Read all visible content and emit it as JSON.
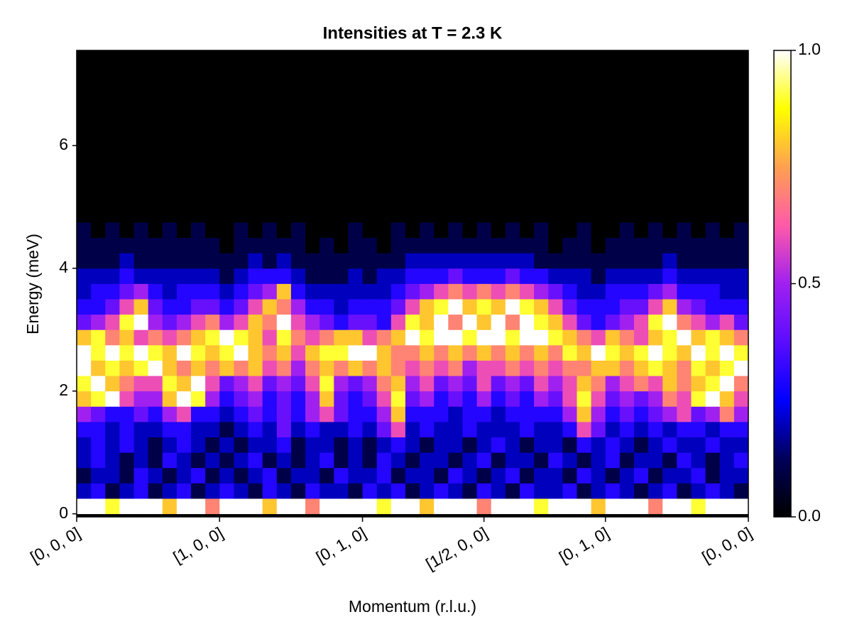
{
  "chart_data": {
    "type": "heatmap",
    "title": "Intensities at T = 2.3 K",
    "xlabel": "Momentum (r.l.u.)",
    "ylabel": "Energy (meV)",
    "xlim": [
      0,
      47
    ],
    "ylim": [
      -0.05,
      7.55
    ],
    "xticks": [
      {
        "value": 0,
        "label": "[0, 0, 0]"
      },
      {
        "value": 10,
        "label": "[1, 0, 0]"
      },
      {
        "value": 20,
        "label": "[0, 1, 0]"
      },
      {
        "value": 28.5,
        "label": "[1/2, 0, 0]"
      },
      {
        "value": 37,
        "label": "[0, 1, 0]"
      },
      {
        "value": 47,
        "label": "[0, 0, 0]"
      }
    ],
    "yticks": [
      0,
      2,
      4,
      6
    ],
    "xbins": [
      0,
      1,
      2,
      3,
      4,
      5,
      6,
      7,
      8,
      9,
      10,
      11,
      12,
      13,
      14,
      15,
      16,
      17,
      18,
      19,
      20,
      21,
      22,
      23,
      24,
      25,
      26,
      27,
      28,
      29,
      30,
      31,
      32,
      33,
      34,
      35,
      36,
      37,
      38,
      39,
      40,
      41,
      42,
      43,
      44,
      45,
      46,
      47
    ],
    "ybins": [
      0,
      0.25,
      0.5,
      0.75,
      1,
      1.25,
      1.5,
      1.75,
      2,
      2.25,
      2.5,
      2.75,
      3,
      3.25,
      3.5,
      3.75,
      4,
      4.25,
      4.5,
      4.75,
      5,
      5.25,
      5.5,
      5.75,
      6,
      6.25,
      6.5,
      6.75,
      7,
      7.25,
      7.5
    ],
    "colormap": [
      "#000000",
      "#00005a",
      "#0000ff",
      "#5a0cff",
      "#a020f0",
      "#ff5aa8",
      "#ffa050",
      "#ffff00",
      "#ffffff"
    ],
    "colorbar": {
      "lim": [
        0,
        1
      ],
      "ticks": [
        {
          "value": 0,
          "label": "0.0"
        },
        {
          "value": 0.5,
          "label": "0.5"
        },
        {
          "value": 1,
          "label": "1.0"
        }
      ]
    },
    "values": [
      [
        1,
        1,
        0.9,
        1,
        1,
        1,
        0.8,
        1,
        1,
        0.7,
        1,
        1,
        1,
        0.8,
        1,
        1,
        0.7,
        1,
        1,
        1,
        1,
        0.9,
        1,
        1,
        0.8,
        1,
        1,
        1,
        0.7,
        1,
        1,
        1,
        0.9,
        1,
        1,
        1,
        0.8,
        1,
        1,
        1,
        0.7,
        1,
        1,
        0.9,
        1,
        1,
        1
      ],
      [
        0.2,
        0.3,
        0.1,
        0.2,
        0.3,
        0.1,
        0.2,
        0.3,
        0.1,
        0.2,
        0.3,
        0.2,
        0.1,
        0.3,
        0.2,
        0.1,
        0.3,
        0.2,
        0.2,
        0.1,
        0.3,
        0.2,
        0.3,
        0.1,
        0.2,
        0.3,
        0.2,
        0.1,
        0.3,
        0.2,
        0.1,
        0.3,
        0.2,
        0.2,
        0.3,
        0.1,
        0.2,
        0.3,
        0.2,
        0.1,
        0.2,
        0.3,
        0.1,
        0.2,
        0.3,
        0.2,
        0.1
      ],
      [
        0.1,
        0.2,
        0.2,
        0.1,
        0.3,
        0.2,
        0.1,
        0.2,
        0.3,
        0.1,
        0.2,
        0.1,
        0.2,
        0.3,
        0.1,
        0.2,
        0.2,
        0.1,
        0.3,
        0.2,
        0.2,
        0.3,
        0.1,
        0.2,
        0.2,
        0.1,
        0.3,
        0.2,
        0.1,
        0.2,
        0.3,
        0.1,
        0.2,
        0.2,
        0.1,
        0.3,
        0.2,
        0.1,
        0.2,
        0.3,
        0.1,
        0.2,
        0.2,
        0.3,
        0.1,
        0.2,
        0.2
      ],
      [
        0.2,
        0.3,
        0.2,
        0.1,
        0.2,
        0.1,
        0.3,
        0.2,
        0.1,
        0.2,
        0.1,
        0.2,
        0.3,
        0.1,
        0.2,
        0.1,
        0.2,
        0.3,
        0.1,
        0.2,
        0.1,
        0.3,
        0.2,
        0.1,
        0.2,
        0.2,
        0.1,
        0.2,
        0.3,
        0.1,
        0.2,
        0.2,
        0.1,
        0.3,
        0.2,
        0.1,
        0.2,
        0.3,
        0.1,
        0.2,
        0.2,
        0.1,
        0.3,
        0.2,
        0.1,
        0.2,
        0.3
      ],
      [
        0.2,
        0.3,
        0.2,
        0.3,
        0.2,
        0.1,
        0.2,
        0.3,
        0.2,
        0.1,
        0.2,
        0.1,
        0.2,
        0.2,
        0.3,
        0.1,
        0.2,
        0.2,
        0.1,
        0.2,
        0.1,
        0.2,
        0.3,
        0.2,
        0.1,
        0.2,
        0.2,
        0.1,
        0.2,
        0.3,
        0.2,
        0.1,
        0.2,
        0.2,
        0.1,
        0.3,
        0.2,
        0.3,
        0.2,
        0.1,
        0.2,
        0.3,
        0.2,
        0.2,
        0.3,
        0.2,
        0.2
      ],
      [
        0.3,
        0.3,
        0.2,
        0.3,
        0.2,
        0.2,
        0.3,
        0.3,
        0.2,
        0.2,
        0.1,
        0.2,
        0.3,
        0.2,
        0.4,
        0.2,
        0.3,
        0.2,
        0.2,
        0.3,
        0.2,
        0.4,
        0.6,
        0.2,
        0.3,
        0.2,
        0.2,
        0.3,
        0.2,
        0.2,
        0.2,
        0.3,
        0.2,
        0.2,
        0.3,
        0.6,
        0.4,
        0.2,
        0.3,
        0.2,
        0.3,
        0.2,
        0.3,
        0.3,
        0.2,
        0.3,
        0.3
      ],
      [
        0.5,
        0.4,
        0.3,
        0.3,
        0.4,
        0.3,
        0.5,
        0.6,
        0.3,
        0.3,
        0.2,
        0.3,
        0.4,
        0.3,
        0.4,
        0.3,
        0.5,
        0.6,
        0.4,
        0.3,
        0.3,
        0.5,
        0.8,
        0.3,
        0.3,
        0.3,
        0.2,
        0.3,
        0.3,
        0.2,
        0.3,
        0.3,
        0.3,
        0.3,
        0.5,
        0.8,
        0.5,
        0.3,
        0.4,
        0.3,
        0.4,
        0.5,
        0.6,
        0.4,
        0.5,
        0.7,
        0.5
      ],
      [
        0.8,
        0.9,
        1,
        0.6,
        0.5,
        0.5,
        0.8,
        1,
        0.9,
        0.5,
        0.3,
        0.4,
        0.5,
        0.3,
        0.4,
        0.3,
        0.5,
        0.8,
        0.4,
        0.3,
        0.4,
        0.6,
        0.9,
        0.4,
        0.5,
        0.3,
        0.4,
        0.3,
        0.5,
        0.3,
        0.4,
        0.3,
        0.5,
        0.4,
        0.6,
        0.9,
        0.6,
        0.4,
        0.5,
        0.4,
        0.5,
        0.7,
        0.6,
        0.9,
        1,
        0.8,
        0.6
      ],
      [
        0.9,
        1,
        0.8,
        0.7,
        0.6,
        0.6,
        0.9,
        0.8,
        1,
        0.6,
        0.4,
        0.5,
        0.6,
        0.4,
        0.5,
        0.4,
        0.6,
        0.9,
        0.5,
        0.4,
        0.5,
        0.7,
        0.8,
        0.5,
        0.6,
        0.4,
        0.5,
        0.4,
        0.6,
        0.4,
        0.5,
        0.4,
        0.6,
        0.5,
        0.6,
        0.8,
        0.7,
        0.5,
        0.6,
        0.7,
        0.6,
        0.8,
        0.7,
        0.8,
        0.9,
        1,
        0.7
      ],
      [
        1,
        0.8,
        0.9,
        0.8,
        0.9,
        1,
        0.8,
        0.7,
        0.8,
        0.7,
        0.8,
        0.7,
        0.8,
        0.6,
        0.7,
        0.5,
        0.7,
        0.8,
        0.7,
        0.8,
        0.7,
        0.8,
        0.7,
        0.6,
        0.7,
        0.6,
        0.7,
        0.5,
        0.6,
        0.6,
        0.7,
        0.6,
        0.7,
        0.6,
        0.7,
        0.7,
        0.8,
        0.8,
        0.7,
        0.8,
        0.9,
        0.8,
        0.7,
        0.9,
        0.8,
        0.9,
        1
      ],
      [
        1,
        0.9,
        1,
        0.9,
        1,
        0.9,
        0.8,
        1,
        0.9,
        0.8,
        0.9,
        1,
        0.8,
        0.7,
        0.8,
        0.6,
        0.8,
        0.9,
        0.9,
        1,
        1,
        0.8,
        0.7,
        0.7,
        0.8,
        0.7,
        0.8,
        0.7,
        0.8,
        0.7,
        0.8,
        0.7,
        0.8,
        0.7,
        0.9,
        0.8,
        1,
        0.9,
        0.8,
        0.9,
        1,
        0.9,
        0.8,
        1,
        0.9,
        1,
        0.9
      ],
      [
        0.8,
        0.9,
        0.7,
        0.8,
        0.6,
        0.7,
        0.6,
        0.7,
        0.8,
        0.9,
        1,
        0.9,
        0.8,
        0.6,
        0.9,
        0.7,
        0.6,
        0.7,
        0.8,
        0.8,
        0.6,
        0.7,
        0.8,
        1,
        0.9,
        1,
        1,
        0.9,
        1,
        1,
        0.9,
        1,
        1,
        0.9,
        0.8,
        0.7,
        0.6,
        0.8,
        0.7,
        0.6,
        0.8,
        0.9,
        1,
        0.8,
        0.9,
        0.8,
        0.7
      ],
      [
        0.4,
        0.5,
        0.6,
        0.9,
        1,
        0.5,
        0.4,
        0.5,
        0.6,
        0.7,
        0.5,
        0.6,
        0.8,
        0.7,
        1,
        0.6,
        0.5,
        0.4,
        0.3,
        0.4,
        0.4,
        0.3,
        0.6,
        0.9,
        0.8,
        1,
        0.7,
        1,
        0.8,
        1,
        0.7,
        1,
        0.9,
        0.8,
        0.6,
        0.4,
        0.3,
        0.4,
        0.5,
        0.6,
        0.9,
        1,
        0.7,
        0.6,
        0.5,
        0.6,
        0.4
      ],
      [
        0.3,
        0.3,
        0.4,
        0.6,
        0.8,
        0.4,
        0.3,
        0.3,
        0.4,
        0.4,
        0.3,
        0.4,
        0.6,
        0.8,
        0.7,
        0.5,
        0.3,
        0.3,
        0.2,
        0.3,
        0.3,
        0.3,
        0.4,
        0.6,
        0.8,
        0.9,
        1,
        0.8,
        0.9,
        0.8,
        1,
        0.9,
        0.8,
        0.6,
        0.4,
        0.3,
        0.3,
        0.3,
        0.4,
        0.4,
        0.6,
        0.8,
        0.5,
        0.4,
        0.3,
        0.3,
        0.3
      ],
      [
        0.2,
        0.3,
        0.3,
        0.4,
        0.5,
        0.3,
        0.2,
        0.3,
        0.3,
        0.3,
        0.2,
        0.3,
        0.4,
        0.5,
        0.8,
        0.3,
        0.2,
        0.2,
        0.2,
        0.2,
        0.2,
        0.2,
        0.3,
        0.4,
        0.5,
        0.6,
        0.7,
        0.6,
        0.7,
        0.6,
        0.7,
        0.6,
        0.5,
        0.4,
        0.3,
        0.2,
        0.2,
        0.3,
        0.3,
        0.3,
        0.4,
        0.5,
        0.3,
        0.3,
        0.3,
        0.2,
        0.2
      ],
      [
        0.2,
        0.2,
        0.2,
        0.3,
        0.2,
        0.2,
        0.2,
        0.2,
        0.2,
        0.2,
        0.1,
        0.2,
        0.3,
        0.3,
        0.3,
        0.2,
        0.1,
        0.1,
        0.1,
        0.2,
        0.1,
        0.2,
        0.2,
        0.3,
        0.3,
        0.3,
        0.4,
        0.3,
        0.3,
        0.3,
        0.4,
        0.3,
        0.3,
        0.2,
        0.2,
        0.2,
        0.1,
        0.2,
        0.2,
        0.2,
        0.2,
        0.3,
        0.2,
        0.2,
        0.2,
        0.2,
        0.2
      ],
      [
        0.1,
        0.1,
        0.1,
        0.2,
        0.1,
        0.1,
        0.1,
        0.1,
        0.1,
        0.1,
        0.1,
        0.1,
        0.2,
        0.1,
        0.2,
        0.1,
        0.1,
        0.1,
        0.1,
        0.1,
        0.1,
        0.1,
        0.1,
        0.2,
        0.2,
        0.2,
        0.2,
        0.2,
        0.2,
        0.2,
        0.2,
        0.2,
        0.1,
        0.1,
        0.1,
        0.1,
        0.1,
        0.1,
        0.1,
        0.1,
        0.1,
        0.2,
        0.1,
        0.1,
        0.1,
        0.1,
        0.1
      ],
      [
        0.1,
        0.1,
        0.1,
        0.1,
        0.1,
        0.1,
        0.1,
        0.1,
        0.1,
        0.1,
        0,
        0.1,
        0.1,
        0.1,
        0.1,
        0.1,
        0,
        0.1,
        0,
        0.1,
        0.1,
        0,
        0.1,
        0.1,
        0.1,
        0.1,
        0.1,
        0.1,
        0.1,
        0.1,
        0.1,
        0.1,
        0.1,
        0,
        0.1,
        0.1,
        0,
        0.1,
        0.1,
        0.1,
        0.1,
        0.1,
        0.1,
        0.1,
        0.1,
        0.1,
        0.1
      ],
      [
        0.1,
        0,
        0.1,
        0,
        0.1,
        0,
        0.1,
        0,
        0.1,
        0,
        0,
        0.1,
        0,
        0.1,
        0,
        0.1,
        0,
        0,
        0,
        0.1,
        0,
        0,
        0.1,
        0,
        0.1,
        0,
        0.1,
        0,
        0.1,
        0,
        0.1,
        0,
        0.1,
        0,
        0,
        0.1,
        0,
        0,
        0.1,
        0,
        0.1,
        0,
        0.1,
        0,
        0.1,
        0,
        0.1
      ],
      [
        0,
        0,
        0,
        0,
        0,
        0,
        0,
        0,
        0,
        0,
        0,
        0,
        0,
        0,
        0,
        0,
        0,
        0,
        0,
        0,
        0,
        0,
        0,
        0,
        0,
        0,
        0,
        0,
        0,
        0,
        0,
        0,
        0,
        0,
        0,
        0,
        0,
        0,
        0,
        0,
        0,
        0,
        0,
        0,
        0,
        0,
        0
      ],
      [
        0,
        0,
        0,
        0,
        0,
        0,
        0,
        0,
        0,
        0,
        0,
        0,
        0,
        0,
        0,
        0,
        0,
        0,
        0,
        0,
        0,
        0,
        0,
        0,
        0,
        0,
        0,
        0,
        0,
        0,
        0,
        0,
        0,
        0,
        0,
        0,
        0,
        0,
        0,
        0,
        0,
        0,
        0,
        0,
        0,
        0,
        0
      ],
      [
        0,
        0,
        0,
        0,
        0,
        0,
        0,
        0,
        0,
        0,
        0,
        0,
        0,
        0,
        0,
        0,
        0,
        0,
        0,
        0,
        0,
        0,
        0,
        0,
        0,
        0,
        0,
        0,
        0,
        0,
        0,
        0,
        0,
        0,
        0,
        0,
        0,
        0,
        0,
        0,
        0,
        0,
        0,
        0,
        0,
        0,
        0
      ],
      [
        0,
        0,
        0,
        0,
        0,
        0,
        0,
        0,
        0,
        0,
        0,
        0,
        0,
        0,
        0,
        0,
        0,
        0,
        0,
        0,
        0,
        0,
        0,
        0,
        0,
        0,
        0,
        0,
        0,
        0,
        0,
        0,
        0,
        0,
        0,
        0,
        0,
        0,
        0,
        0,
        0,
        0,
        0,
        0,
        0,
        0,
        0
      ],
      [
        0,
        0,
        0,
        0,
        0,
        0,
        0,
        0,
        0,
        0,
        0,
        0,
        0,
        0,
        0,
        0,
        0,
        0,
        0,
        0,
        0,
        0,
        0,
        0,
        0,
        0,
        0,
        0,
        0,
        0,
        0,
        0,
        0,
        0,
        0,
        0,
        0,
        0,
        0,
        0,
        0,
        0,
        0,
        0,
        0,
        0,
        0
      ],
      [
        0,
        0,
        0,
        0,
        0,
        0,
        0,
        0,
        0,
        0,
        0,
        0,
        0,
        0,
        0,
        0,
        0,
        0,
        0,
        0,
        0,
        0,
        0,
        0,
        0,
        0,
        0,
        0,
        0,
        0,
        0,
        0,
        0,
        0,
        0,
        0,
        0,
        0,
        0,
        0,
        0,
        0,
        0,
        0,
        0,
        0,
        0
      ],
      [
        0,
        0,
        0,
        0,
        0,
        0,
        0,
        0,
        0,
        0,
        0,
        0,
        0,
        0,
        0,
        0,
        0,
        0,
        0,
        0,
        0,
        0,
        0,
        0,
        0,
        0,
        0,
        0,
        0,
        0,
        0,
        0,
        0,
        0,
        0,
        0,
        0,
        0,
        0,
        0,
        0,
        0,
        0,
        0,
        0,
        0,
        0
      ],
      [
        0,
        0,
        0,
        0,
        0,
        0,
        0,
        0,
        0,
        0,
        0,
        0,
        0,
        0,
        0,
        0,
        0,
        0,
        0,
        0,
        0,
        0,
        0,
        0,
        0,
        0,
        0,
        0,
        0,
        0,
        0,
        0,
        0,
        0,
        0,
        0,
        0,
        0,
        0,
        0,
        0,
        0,
        0,
        0,
        0,
        0,
        0
      ],
      [
        0,
        0,
        0,
        0,
        0,
        0,
        0,
        0,
        0,
        0,
        0,
        0,
        0,
        0,
        0,
        0,
        0,
        0,
        0,
        0,
        0,
        0,
        0,
        0,
        0,
        0,
        0,
        0,
        0,
        0,
        0,
        0,
        0,
        0,
        0,
        0,
        0,
        0,
        0,
        0,
        0,
        0,
        0,
        0,
        0,
        0,
        0
      ],
      [
        0,
        0,
        0,
        0,
        0,
        0,
        0,
        0,
        0,
        0,
        0,
        0,
        0,
        0,
        0,
        0,
        0,
        0,
        0,
        0,
        0,
        0,
        0,
        0,
        0,
        0,
        0,
        0,
        0,
        0,
        0,
        0,
        0,
        0,
        0,
        0,
        0,
        0,
        0,
        0,
        0,
        0,
        0,
        0,
        0,
        0,
        0
      ],
      [
        0,
        0,
        0,
        0,
        0,
        0,
        0,
        0,
        0,
        0,
        0,
        0,
        0,
        0,
        0,
        0,
        0,
        0,
        0,
        0,
        0,
        0,
        0,
        0,
        0,
        0,
        0,
        0,
        0,
        0,
        0,
        0,
        0,
        0,
        0,
        0,
        0,
        0,
        0,
        0,
        0,
        0,
        0,
        0,
        0,
        0,
        0
      ]
    ]
  }
}
